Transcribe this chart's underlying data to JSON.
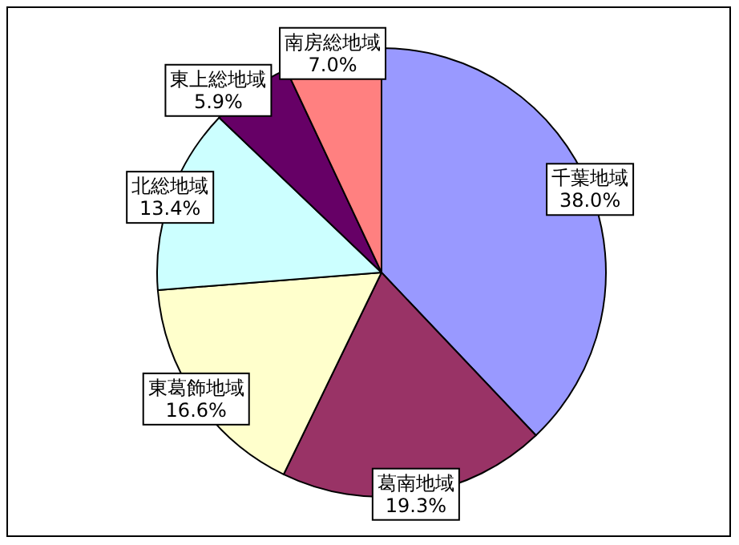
{
  "chart_data": {
    "type": "pie",
    "categories": [
      "千葉地域",
      "葛南地域",
      "東葛飾地域",
      "北総地域",
      "東上総地域",
      "南房総地域"
    ],
    "values": [
      38.0,
      19.3,
      16.6,
      13.4,
      5.9,
      7.0
    ],
    "value_labels": [
      "38.0%",
      "19.3%",
      "16.6%",
      "13.4%",
      "5.9%",
      "7.0%"
    ],
    "colors": [
      "#9999ff",
      "#993366",
      "#ffffcc",
      "#ccffff",
      "#660066",
      "#ff8080"
    ]
  }
}
